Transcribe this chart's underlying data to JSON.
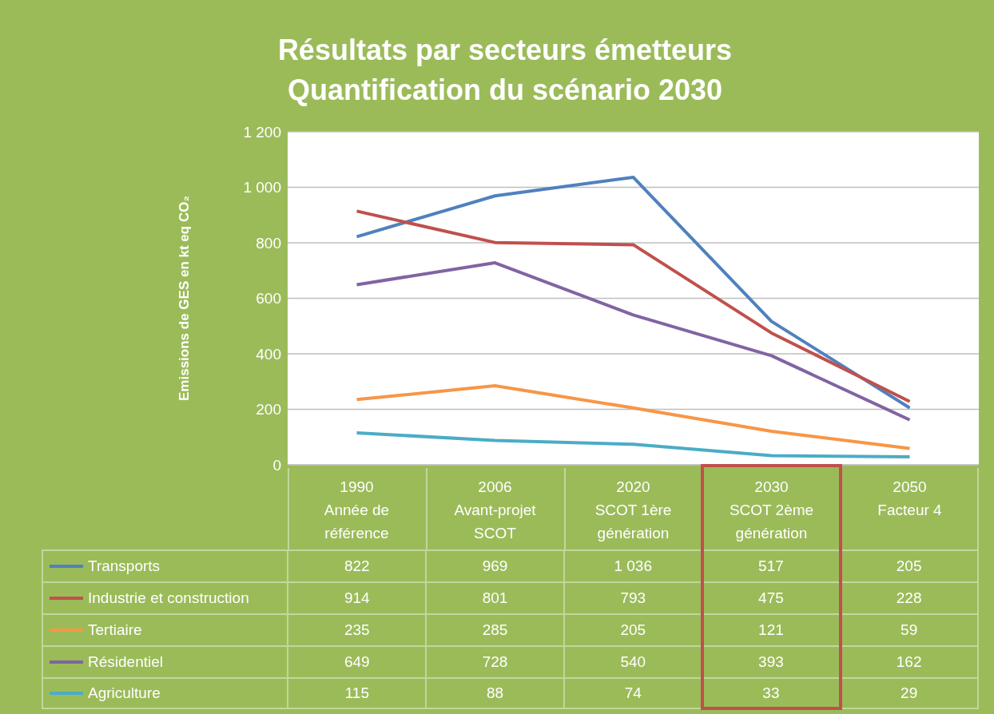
{
  "chart_data": {
    "type": "line",
    "title": "Résultats par secteurs émetteurs\nQuantification du scénario 2030",
    "ylabel": "Emissions de GES en kt eq CO₂",
    "categories": [
      "1990\nAnnée de\nréférence",
      "2006\nAvant-projet\nSCOT",
      "2020\nSCOT 1ère\ngénération",
      "2030\nSCOT 2ème\ngénération",
      "2050\nFacteur 4"
    ],
    "series": [
      {
        "name": "Transports",
        "color": "#4f81bd",
        "values": [
          822,
          969,
          1036,
          517,
          205
        ],
        "value_labels": [
          "822",
          "969",
          "1 036",
          "517",
          "205"
        ]
      },
      {
        "name": "Industrie et construction",
        "color": "#c0504d",
        "values": [
          914,
          801,
          793,
          475,
          228
        ],
        "value_labels": [
          "914",
          "801",
          "793",
          "475",
          "228"
        ]
      },
      {
        "name": "Tertiaire",
        "color": "#f79646",
        "values": [
          235,
          285,
          205,
          121,
          59
        ],
        "value_labels": [
          "235",
          "285",
          "205",
          "121",
          "59"
        ]
      },
      {
        "name": "Résidentiel",
        "color": "#8064a2",
        "values": [
          649,
          728,
          540,
          393,
          162
        ],
        "value_labels": [
          "649",
          "728",
          "540",
          "393",
          "162"
        ]
      },
      {
        "name": "Agriculture",
        "color": "#4bacc6",
        "values": [
          115,
          88,
          74,
          33,
          29
        ],
        "value_labels": [
          "115",
          "88",
          "74",
          "33",
          "29"
        ]
      }
    ],
    "ylim": [
      0,
      1200
    ],
    "yticks": [
      0,
      200,
      400,
      600,
      800,
      {
        "value": 1000,
        "label": "1 000"
      },
      {
        "value": 1200,
        "label": "1 200"
      }
    ],
    "grid": "y",
    "legend": "bottom",
    "marker": "none",
    "line_style": "solid"
  }
}
